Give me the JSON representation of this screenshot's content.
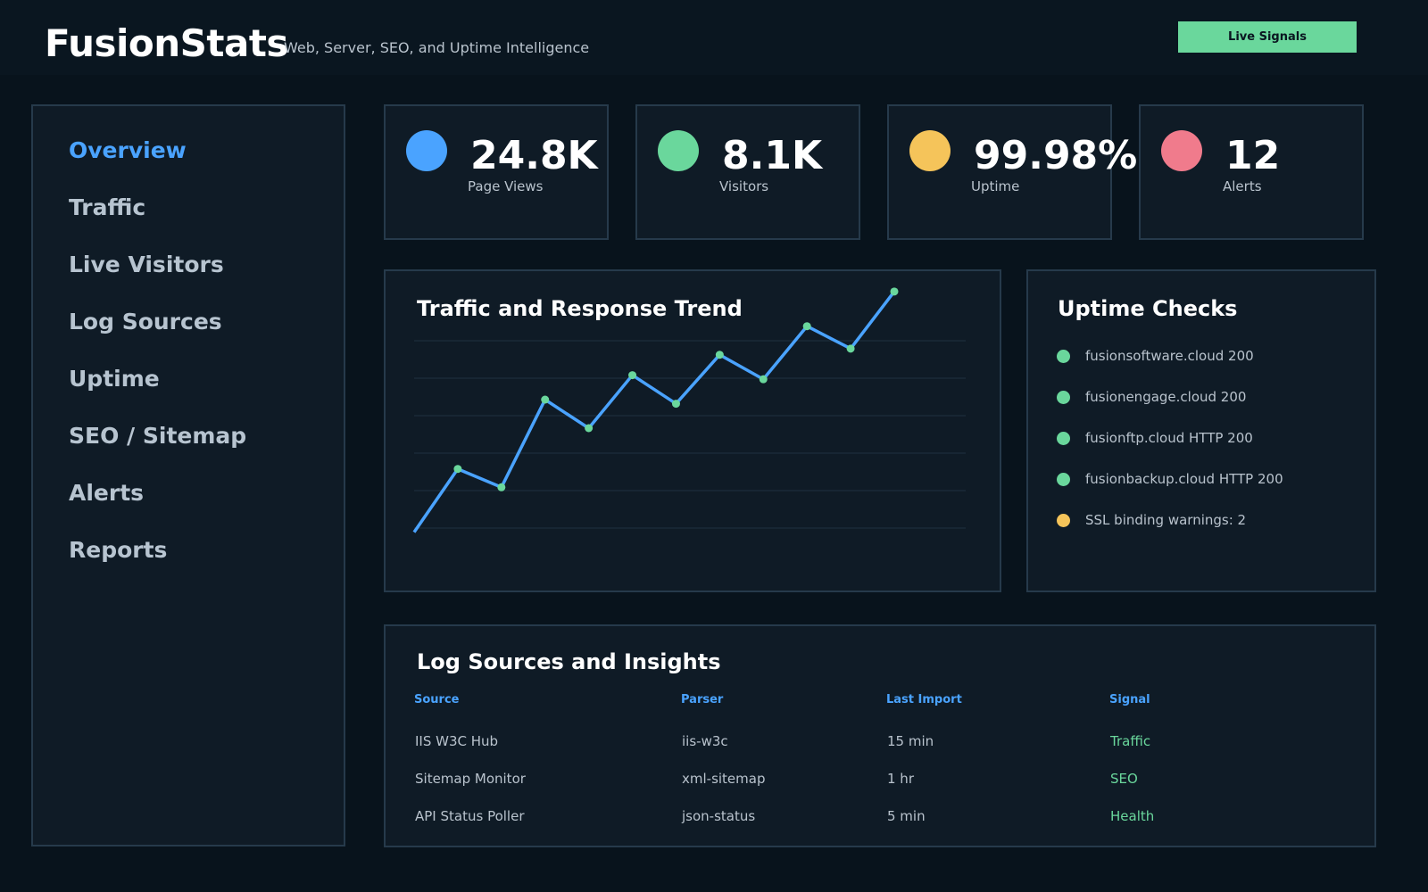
{
  "app": {
    "name": "FusionStats",
    "tagline": "Web, Server, SEO, and Uptime Intelligence",
    "live_button": "Live Signals"
  },
  "sidebar": {
    "items": [
      {
        "label": "Overview",
        "active": true
      },
      {
        "label": "Traffic",
        "active": false
      },
      {
        "label": "Live Visitors",
        "active": false
      },
      {
        "label": "Log Sources",
        "active": false
      },
      {
        "label": "Uptime",
        "active": false
      },
      {
        "label": "SEO / Sitemap",
        "active": false
      },
      {
        "label": "Alerts",
        "active": false
      },
      {
        "label": "Reports",
        "active": false
      }
    ]
  },
  "stats": [
    {
      "value": "24.8K",
      "label": "Page Views",
      "color": "#4aa3ff"
    },
    {
      "value": "8.1K",
      "label": "Visitors",
      "color": "#6ad79c"
    },
    {
      "value": "99.98%",
      "label": "Uptime",
      "color": "#f5c45a"
    },
    {
      "value": "12",
      "label": "Alerts",
      "color": "#f07b8c"
    }
  ],
  "trend": {
    "title": "Traffic and Response Trend"
  },
  "chart_data": {
    "type": "line",
    "title": "Traffic and Response Trend",
    "x": [
      1,
      2,
      3,
      4,
      5,
      6,
      7,
      8,
      9,
      10,
      11,
      12
    ],
    "series": [
      {
        "values": [
          12,
          43,
          34,
          77,
          63,
          89,
          75,
          99,
          87,
          113,
          102,
          130
        ]
      }
    ],
    "ylim": [
      0,
      140
    ],
    "grid": true,
    "line_color": "#4aa3ff",
    "point_color": "#6ad79c"
  },
  "uptime_checks": {
    "title": "Uptime Checks",
    "items": [
      {
        "text": "fusionsoftware.cloud 200",
        "status_color": "#6ad79c"
      },
      {
        "text": "fusionengage.cloud 200",
        "status_color": "#6ad79c"
      },
      {
        "text": "fusionftp.cloud HTTP 200",
        "status_color": "#6ad79c"
      },
      {
        "text": "fusionbackup.cloud HTTP 200",
        "status_color": "#6ad79c"
      },
      {
        "text": "SSL binding warnings: 2",
        "status_color": "#f5c45a"
      }
    ]
  },
  "logs": {
    "title": "Log Sources and Insights",
    "headers": {
      "source": "Source",
      "parser": "Parser",
      "last_import": "Last Import",
      "signal": "Signal"
    },
    "rows": [
      {
        "source": "IIS W3C Hub",
        "parser": "iis-w3c",
        "last_import": "15 min",
        "signal": "Traffic"
      },
      {
        "source": "Sitemap Monitor",
        "parser": "xml-sitemap",
        "last_import": "1 hr",
        "signal": "SEO"
      },
      {
        "source": "API Status Poller",
        "parser": "json-status",
        "last_import": "5 min",
        "signal": "Health"
      }
    ]
  }
}
